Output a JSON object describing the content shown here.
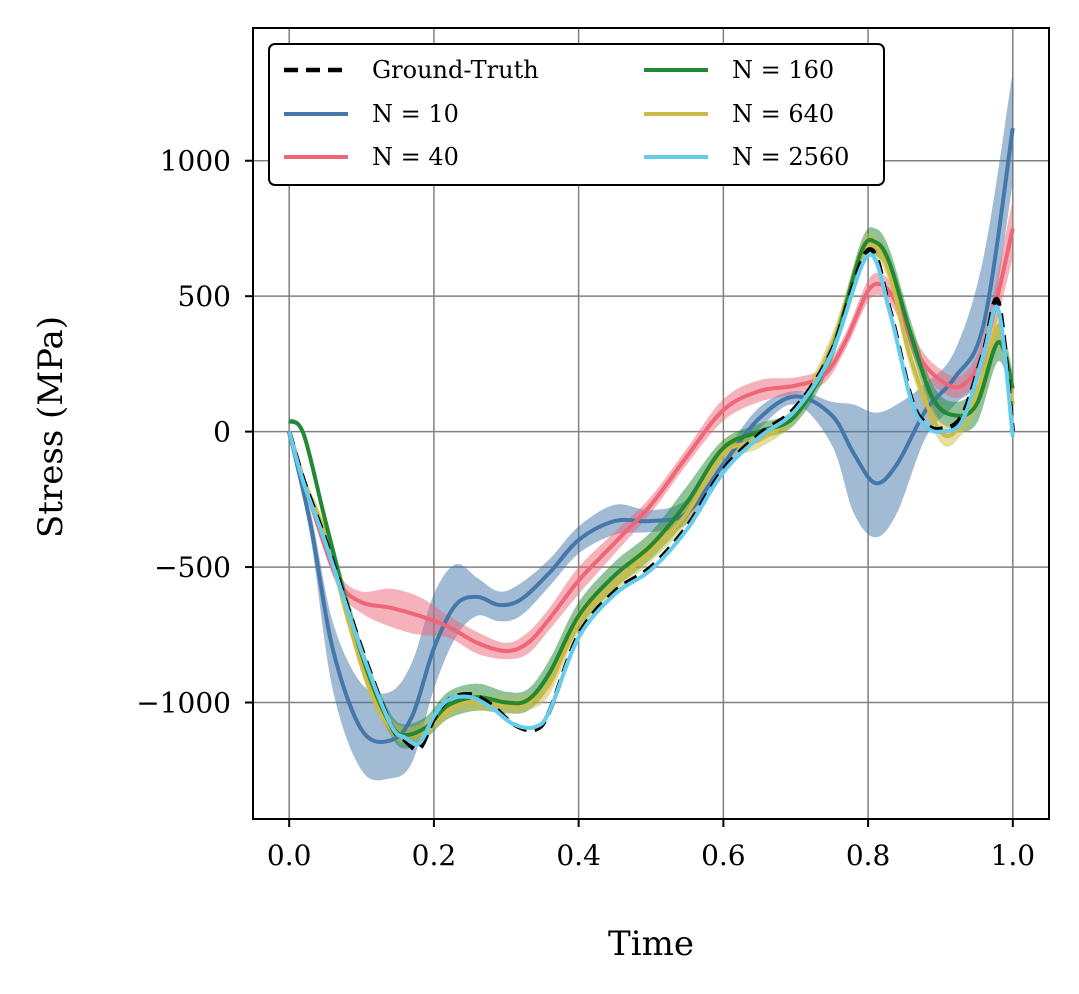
{
  "chart_data": {
    "type": "line",
    "title": "",
    "xlabel": "Time",
    "ylabel": "Stress (MPa)",
    "xlim": [
      -0.05,
      1.05
    ],
    "ylim": [
      -1430,
      1490
    ],
    "grid": true,
    "legend_position": "top-left",
    "legend_columns": 2,
    "xticks": [
      0.0,
      0.2,
      0.4,
      0.6,
      0.8,
      1.0
    ],
    "xtick_labels": [
      "0.0",
      "0.2",
      "0.4",
      "0.6",
      "0.8",
      "1.0"
    ],
    "yticks": [
      -1000,
      -500,
      0,
      500,
      1000
    ],
    "ytick_labels": [
      "−1000",
      "−500",
      "0",
      "500",
      "1000"
    ],
    "series": [
      {
        "name": "Ground-Truth",
        "color": "#000000",
        "dashed": true,
        "x": [
          0,
          0.02,
          0.05,
          0.1,
          0.14,
          0.16,
          0.18,
          0.2,
          0.22,
          0.25,
          0.28,
          0.31,
          0.34,
          0.36,
          0.4,
          0.45,
          0.5,
          0.55,
          0.6,
          0.65,
          0.7,
          0.75,
          0.8,
          0.83,
          0.86,
          0.88,
          0.9,
          0.93,
          0.96,
          0.98,
          1.0
        ],
        "values": [
          0,
          -180,
          -400,
          -800,
          -1080,
          -1140,
          -1170,
          -1060,
          -990,
          -970,
          -1010,
          -1080,
          -1100,
          -1030,
          -750,
          -590,
          -500,
          -350,
          -140,
          -10,
          90,
          300,
          670,
          450,
          120,
          30,
          10,
          60,
          300,
          480,
          0
        ]
      },
      {
        "name": "N = 10",
        "color": "#4477aa",
        "x": [
          0,
          0.03,
          0.06,
          0.1,
          0.14,
          0.17,
          0.2,
          0.23,
          0.26,
          0.29,
          0.32,
          0.36,
          0.4,
          0.45,
          0.5,
          0.55,
          0.6,
          0.65,
          0.7,
          0.75,
          0.78,
          0.81,
          0.84,
          0.88,
          0.92,
          0.96,
          1.0
        ],
        "values": [
          0,
          -350,
          -800,
          -1100,
          -1140,
          -1050,
          -800,
          -640,
          -610,
          -640,
          -620,
          -520,
          -400,
          -330,
          -330,
          -300,
          -120,
          50,
          130,
          60,
          -80,
          -190,
          -120,
          80,
          200,
          400,
          1120
        ],
        "band_upper": [
          0,
          -300,
          -700,
          -930,
          -960,
          -850,
          -600,
          -490,
          -540,
          -590,
          -560,
          -470,
          -350,
          -270,
          -290,
          -250,
          -80,
          90,
          150,
          110,
          100,
          70,
          100,
          180,
          300,
          650,
          1330
        ],
        "band_lower": [
          0,
          -400,
          -950,
          -1250,
          -1280,
          -1220,
          -950,
          -760,
          -680,
          -700,
          -680,
          -570,
          -450,
          -380,
          -370,
          -340,
          -160,
          10,
          100,
          -50,
          -300,
          -390,
          -300,
          -20,
          100,
          250,
          920
        ]
      },
      {
        "name": "N = 40",
        "color": "#ee6677",
        "x": [
          0,
          0.04,
          0.07,
          0.1,
          0.14,
          0.18,
          0.22,
          0.26,
          0.3,
          0.33,
          0.36,
          0.4,
          0.45,
          0.5,
          0.55,
          0.6,
          0.65,
          0.7,
          0.74,
          0.77,
          0.8,
          0.82,
          0.84,
          0.87,
          0.9,
          0.93,
          0.96,
          1.0
        ],
        "values": [
          0,
          -350,
          -560,
          -630,
          -650,
          -680,
          -720,
          -780,
          -810,
          -780,
          -690,
          -550,
          -410,
          -270,
          -90,
          80,
          150,
          170,
          210,
          340,
          520,
          540,
          470,
          280,
          190,
          170,
          300,
          750
        ],
        "band_upper": [
          0,
          -330,
          -530,
          -590,
          -580,
          -610,
          -680,
          -740,
          -780,
          -740,
          -650,
          -500,
          -370,
          -240,
          -60,
          120,
          190,
          200,
          240,
          370,
          560,
          580,
          510,
          320,
          230,
          210,
          360,
          860
        ],
        "band_lower": [
          0,
          -370,
          -590,
          -670,
          -720,
          -750,
          -760,
          -820,
          -840,
          -820,
          -730,
          -600,
          -450,
          -300,
          -120,
          40,
          110,
          140,
          180,
          310,
          480,
          500,
          430,
          240,
          150,
          130,
          240,
          640
        ]
      },
      {
        "name": "N = 160",
        "color": "#228833",
        "x": [
          0,
          0.02,
          0.05,
          0.08,
          0.11,
          0.14,
          0.16,
          0.19,
          0.22,
          0.26,
          0.3,
          0.33,
          0.36,
          0.4,
          0.45,
          0.5,
          0.55,
          0.6,
          0.65,
          0.7,
          0.75,
          0.79,
          0.81,
          0.83,
          0.86,
          0.89,
          0.92,
          0.95,
          0.98,
          1.0
        ],
        "values": [
          40,
          -10,
          -330,
          -640,
          -900,
          -1080,
          -1120,
          -1090,
          -1010,
          -980,
          -1000,
          -990,
          -890,
          -680,
          -530,
          -420,
          -260,
          -60,
          0,
          60,
          300,
          660,
          700,
          620,
          350,
          120,
          60,
          100,
          330,
          160
        ],
        "band_upper": [
          50,
          0,
          -300,
          -600,
          -860,
          -1040,
          -1080,
          -1050,
          -960,
          -930,
          -960,
          -950,
          -840,
          -630,
          -480,
          -370,
          -200,
          -30,
          30,
          90,
          340,
          700,
          750,
          670,
          400,
          170,
          110,
          170,
          400,
          220
        ],
        "band_lower": [
          30,
          -20,
          -360,
          -680,
          -940,
          -1120,
          -1170,
          -1130,
          -1060,
          -1030,
          -1040,
          -1030,
          -940,
          -730,
          -580,
          -470,
          -320,
          -90,
          -30,
          30,
          260,
          620,
          650,
          570,
          300,
          70,
          10,
          30,
          260,
          100
        ]
      },
      {
        "name": "N = 640",
        "color": "#ccbb44",
        "x": [
          0,
          0.02,
          0.05,
          0.08,
          0.11,
          0.14,
          0.17,
          0.2,
          0.23,
          0.26,
          0.3,
          0.33,
          0.36,
          0.4,
          0.45,
          0.5,
          0.55,
          0.6,
          0.65,
          0.7,
          0.75,
          0.79,
          0.81,
          0.83,
          0.86,
          0.9,
          0.93,
          0.96,
          0.98,
          1.0
        ],
        "values": [
          0,
          -180,
          -380,
          -680,
          -940,
          -1090,
          -1120,
          -1070,
          -1010,
          -1000,
          -1010,
          -1000,
          -930,
          -700,
          -560,
          -440,
          -300,
          -80,
          -30,
          70,
          320,
          650,
          680,
          580,
          260,
          0,
          30,
          200,
          380,
          100
        ],
        "band_upper": [
          0,
          -160,
          -350,
          -650,
          -910,
          -1060,
          -1090,
          -1040,
          -980,
          -970,
          -980,
          -970,
          -890,
          -660,
          -520,
          -400,
          -260,
          -40,
          0,
          100,
          360,
          690,
          720,
          620,
          300,
          40,
          70,
          260,
          440,
          150
        ],
        "band_lower": [
          0,
          -200,
          -410,
          -710,
          -970,
          -1120,
          -1150,
          -1100,
          -1040,
          -1030,
          -1040,
          -1030,
          -970,
          -740,
          -600,
          -480,
          -340,
          -120,
          -60,
          40,
          280,
          610,
          640,
          540,
          220,
          -40,
          -10,
          140,
          320,
          50
        ]
      },
      {
        "name": "N = 2560",
        "color": "#66ccee",
        "x": [
          0,
          0.02,
          0.05,
          0.1,
          0.14,
          0.16,
          0.18,
          0.2,
          0.22,
          0.25,
          0.28,
          0.31,
          0.34,
          0.36,
          0.4,
          0.45,
          0.5,
          0.55,
          0.6,
          0.65,
          0.7,
          0.75,
          0.8,
          0.83,
          0.86,
          0.88,
          0.9,
          0.93,
          0.96,
          0.98,
          1.0
        ],
        "values": [
          0,
          -190,
          -410,
          -810,
          -1080,
          -1130,
          -1150,
          -1050,
          -990,
          -980,
          -1020,
          -1080,
          -1090,
          -1030,
          -760,
          -600,
          -510,
          -360,
          -150,
          -20,
          80,
          290,
          650,
          440,
          110,
          20,
          0,
          40,
          290,
          450,
          -20
        ]
      }
    ]
  }
}
